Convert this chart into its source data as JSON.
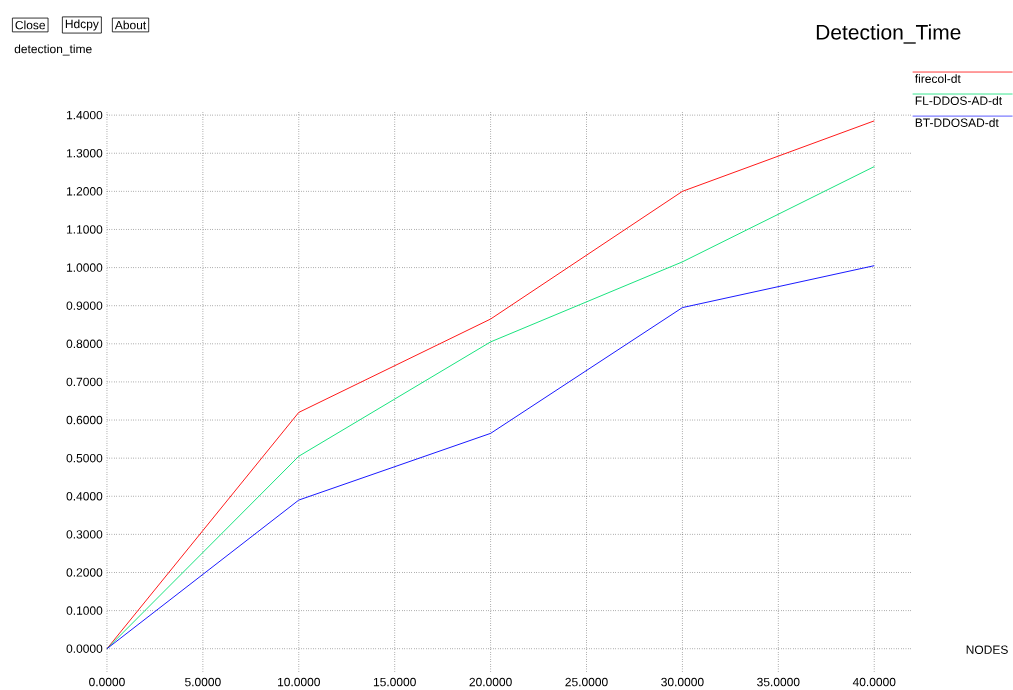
{
  "chart_data": {
    "type": "line",
    "title": "Detection_Time",
    "xlabel": "NODES",
    "ylabel": "detection_time",
    "annotations": [
      "Close",
      "Hdcpy",
      "About"
    ],
    "x": [
      0,
      10,
      20,
      30,
      40
    ],
    "series": [
      {
        "name": "firecol-dt",
        "color": "#ff0000",
        "values": [
          0,
          0.62,
          0.865,
          1.2,
          1.385
        ]
      },
      {
        "name": "FL-DDOS-AD-dt",
        "color": "#00e070",
        "values": [
          0,
          0.505,
          0.805,
          1.015,
          1.265
        ]
      },
      {
        "name": "BT-DDOSAD-dt",
        "color": "#0000ff",
        "values": [
          0,
          0.39,
          0.565,
          0.895,
          1.005
        ]
      }
    ],
    "xlim": [
      0,
      42
    ],
    "ylim": [
      -0.06,
      1.41
    ],
    "xticks": [
      {
        "value": 0,
        "label": "0.0000"
      },
      {
        "value": 5,
        "label": "5.0000"
      },
      {
        "value": 10,
        "label": "10.0000"
      },
      {
        "value": 15,
        "label": "15.0000"
      },
      {
        "value": 20,
        "label": "20.0000"
      },
      {
        "value": 25,
        "label": "25.0000"
      },
      {
        "value": 30,
        "label": "30.0000"
      },
      {
        "value": 35,
        "label": "35.0000"
      },
      {
        "value": 40,
        "label": "40.0000"
      }
    ],
    "yticks": [
      {
        "value": 0,
        "label": "0.0000"
      },
      {
        "value": 0.1,
        "label": "0.1000"
      },
      {
        "value": 0.2,
        "label": "0.2000"
      },
      {
        "value": 0.3,
        "label": "0.3000"
      },
      {
        "value": 0.4,
        "label": "0.4000"
      },
      {
        "value": 0.5,
        "label": "0.5000"
      },
      {
        "value": 0.6,
        "label": "0.6000"
      },
      {
        "value": 0.7,
        "label": "0.7000"
      },
      {
        "value": 0.8,
        "label": "0.8000"
      },
      {
        "value": 0.9,
        "label": "0.9000"
      },
      {
        "value": 1.0,
        "label": "1.0000"
      },
      {
        "value": 1.1,
        "label": "1.1000"
      },
      {
        "value": 1.2,
        "label": "1.2000"
      },
      {
        "value": 1.3,
        "label": "1.3000"
      },
      {
        "value": 1.4,
        "label": "1.4000"
      }
    ],
    "grid": true,
    "legend": "right",
    "marker": "none",
    "line_style": "solid"
  }
}
